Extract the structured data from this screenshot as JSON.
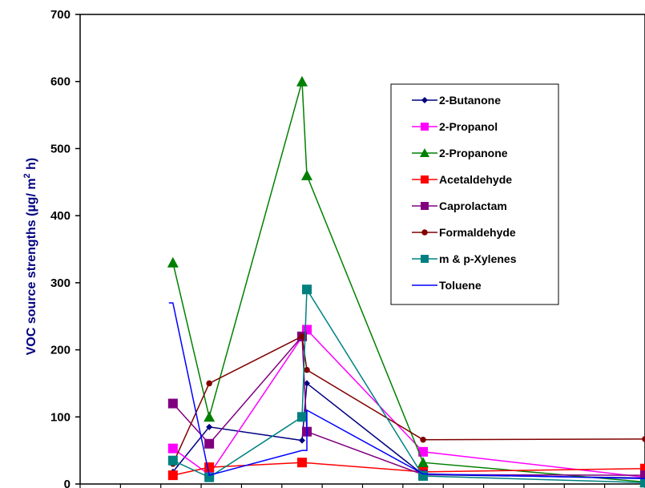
{
  "chart_data": {
    "type": "line",
    "ylabel": "VOC source strengths (µg/ m² h)",
    "ylabel_main": "VOC source strengths (µg/ m",
    "ylabel_sup": "2",
    "ylabel_end": " h)",
    "ylim": [
      0,
      700
    ],
    "yticks": [
      0,
      100,
      200,
      300,
      400,
      500,
      600,
      700
    ],
    "xlim": [
      0,
      14
    ],
    "legend_position": "right-middle",
    "grid": false,
    "series": [
      {
        "name": "2-Butanone",
        "color": "#000080",
        "marker": "diamond",
        "points": [
          [
            2.3,
            18
          ],
          [
            3.2,
            85
          ],
          [
            5.5,
            65
          ],
          [
            5.62,
            150
          ],
          [
            8.5,
            14
          ],
          [
            14.0,
            9
          ]
        ]
      },
      {
        "name": "2-Propanol",
        "color": "#ff00ff",
        "marker": "square",
        "points": [
          [
            2.3,
            53
          ],
          [
            3.2,
            14
          ],
          [
            5.62,
            230
          ],
          [
            8.5,
            48
          ],
          [
            14.0,
            10
          ]
        ]
      },
      {
        "name": "2-Propanone",
        "color": "#008000",
        "marker": "triangle",
        "points": [
          [
            2.3,
            330
          ],
          [
            3.2,
            100
          ],
          [
            5.5,
            600
          ],
          [
            5.62,
            460
          ],
          [
            8.5,
            32
          ],
          [
            14.0,
            3
          ]
        ]
      },
      {
        "name": "Acetaldehyde",
        "color": "#ff0000",
        "marker": "square",
        "points": [
          [
            2.3,
            13
          ],
          [
            3.2,
            25
          ],
          [
            5.5,
            32
          ],
          [
            8.5,
            18
          ],
          [
            14.0,
            23
          ]
        ]
      },
      {
        "name": "Caprolactam",
        "color": "#800080",
        "marker": "square",
        "points": [
          [
            2.3,
            120
          ],
          [
            3.2,
            60
          ],
          [
            5.5,
            220
          ],
          [
            5.62,
            78
          ],
          [
            8.5,
            14
          ],
          [
            14.0,
            13
          ]
        ]
      },
      {
        "name": "Formaldehyde",
        "color": "#800000",
        "marker": "circle",
        "points": [
          [
            2.3,
            30
          ],
          [
            3.2,
            150
          ],
          [
            5.5,
            220
          ],
          [
            5.62,
            170
          ],
          [
            8.5,
            66
          ],
          [
            14.0,
            67
          ]
        ]
      },
      {
        "name": "m & p-Xylenes",
        "color": "#008080",
        "marker": "square",
        "points": [
          [
            2.3,
            35
          ],
          [
            3.2,
            10
          ],
          [
            5.5,
            100
          ],
          [
            5.62,
            290
          ],
          [
            8.5,
            12
          ],
          [
            14.0,
            2
          ]
        ]
      },
      {
        "name": "Toluene",
        "color": "#0000ff",
        "marker": "none",
        "points": [
          [
            2.2,
            270
          ],
          [
            2.3,
            270
          ],
          [
            3.2,
            13
          ],
          [
            5.5,
            50
          ],
          [
            5.62,
            50
          ],
          [
            5.62,
            110
          ],
          [
            8.5,
            15
          ],
          [
            14.0,
            8
          ]
        ]
      }
    ]
  }
}
